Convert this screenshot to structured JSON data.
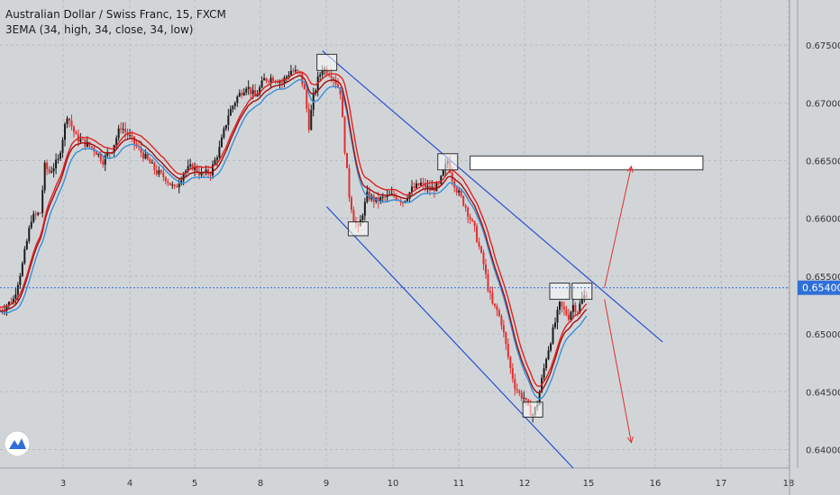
{
  "header": {
    "symbol_line": "Australian Dollar / Swiss Franc, 15, FXCM",
    "indicator_line": "3EMA (34, high, 34, close, 34, low)"
  },
  "colors": {
    "background": "#d2d5d8",
    "candle_up": "#1a1a1a",
    "candle_down": "#e03030",
    "ema_high": "#e02020",
    "ema_close": "#a01010",
    "ema_low": "#3a8fd8",
    "channel": "#2a4fd0",
    "arrow": "#e03030",
    "price_badge": "#2f6fd8",
    "grid": "#b8bcc0"
  },
  "price_badge": "0.65400",
  "chart_data": {
    "type": "candlestick",
    "title": "Australian Dollar / Swiss Franc, 15, FXCM",
    "indicator": "3EMA (34, high, 34, close, 34, low)",
    "y_ticks": [
      "0.67500",
      "0.67000",
      "0.66500",
      "0.66000",
      "0.65500",
      "0.65000",
      "0.64500",
      "0.64000"
    ],
    "x_ticks": [
      "3",
      "4",
      "5",
      "8",
      "9",
      "10",
      "11",
      "12",
      "15",
      "16",
      "17",
      "18"
    ],
    "ylim": [
      0.6384,
      0.6789
    ],
    "current_price": 0.654,
    "price_path": [
      [
        0,
        0.652
      ],
      [
        3,
        0.653
      ],
      [
        5,
        0.656
      ],
      [
        7,
        0.66
      ],
      [
        9,
        0.6605
      ],
      [
        10,
        0.6645
      ],
      [
        11,
        0.664
      ],
      [
        13,
        0.665
      ],
      [
        15,
        0.669
      ],
      [
        17,
        0.667
      ],
      [
        19,
        0.6665
      ],
      [
        21,
        0.666
      ],
      [
        23,
        0.665
      ],
      [
        25,
        0.666
      ],
      [
        27,
        0.668
      ],
      [
        29,
        0.667
      ],
      [
        31,
        0.666
      ],
      [
        33,
        0.665
      ],
      [
        35,
        0.664
      ],
      [
        37,
        0.6635
      ],
      [
        39,
        0.6625
      ],
      [
        41,
        0.664
      ],
      [
        43,
        0.6645
      ],
      [
        45,
        0.6638
      ],
      [
        47,
        0.664
      ],
      [
        49,
        0.666
      ],
      [
        51,
        0.669
      ],
      [
        53,
        0.6705
      ],
      [
        55,
        0.6715
      ],
      [
        57,
        0.6705
      ],
      [
        59,
        0.672
      ],
      [
        61,
        0.6722
      ],
      [
        63,
        0.6718
      ],
      [
        65,
        0.6728
      ],
      [
        67,
        0.6725
      ],
      [
        68,
        0.671
      ],
      [
        69,
        0.668
      ],
      [
        70,
        0.6705
      ],
      [
        71,
        0.672
      ],
      [
        72,
        0.673
      ],
      [
        73,
        0.6728
      ],
      [
        74,
        0.6725
      ],
      [
        75,
        0.6718
      ],
      [
        76,
        0.671
      ],
      [
        77,
        0.666
      ],
      [
        78,
        0.662
      ],
      [
        79,
        0.66
      ],
      [
        80,
        0.659
      ],
      [
        81,
        0.6605
      ],
      [
        82,
        0.662
      ],
      [
        84,
        0.6615
      ],
      [
        86,
        0.6618
      ],
      [
        88,
        0.662
      ],
      [
        90,
        0.6615
      ],
      [
        92,
        0.6625
      ],
      [
        94,
        0.663
      ],
      [
        96,
        0.6625
      ],
      [
        98,
        0.6628
      ],
      [
        99,
        0.664
      ],
      [
        100,
        0.665
      ],
      [
        101,
        0.6635
      ],
      [
        102,
        0.6625
      ],
      [
        104,
        0.661
      ],
      [
        106,
        0.659
      ],
      [
        107,
        0.6575
      ],
      [
        108,
        0.656
      ],
      [
        109,
        0.654
      ],
      [
        110,
        0.6525
      ],
      [
        111,
        0.652
      ],
      [
        112,
        0.651
      ],
      [
        113,
        0.649
      ],
      [
        114,
        0.647
      ],
      [
        115,
        0.6455
      ],
      [
        116,
        0.6448
      ],
      [
        117,
        0.6445
      ],
      [
        118,
        0.6435
      ],
      [
        119,
        0.643
      ],
      [
        120,
        0.644
      ],
      [
        121,
        0.646
      ],
      [
        122,
        0.648
      ],
      [
        123,
        0.6495
      ],
      [
        124,
        0.651
      ],
      [
        125,
        0.6525
      ],
      [
        126,
        0.652
      ],
      [
        127,
        0.6515
      ],
      [
        128,
        0.6525
      ],
      [
        129,
        0.652
      ],
      [
        130,
        0.653
      ],
      [
        131,
        0.6535
      ]
    ],
    "channel_upper": [
      [
        72,
        0.6745
      ],
      [
        148,
        0.6493
      ]
    ],
    "channel_lower": [
      [
        73,
        0.661
      ],
      [
        128,
        0.6384
      ]
    ],
    "markers": [
      {
        "t": 73,
        "low": 0.6728,
        "high": 0.6742
      },
      {
        "t": 80,
        "low": 0.6585,
        "high": 0.6597
      },
      {
        "t": 100,
        "low": 0.6642,
        "high": 0.6656
      },
      {
        "t": 119,
        "low": 0.6428,
        "high": 0.6441
      },
      {
        "t": 125,
        "low": 0.653,
        "high": 0.6544
      },
      {
        "t": 130,
        "low": 0.653,
        "high": 0.6544
      }
    ],
    "target_box": {
      "t_start": 105,
      "t_end": 157,
      "low": 0.6642,
      "high": 0.6654
    },
    "arrows": [
      {
        "from": [
          135,
          0.654
        ],
        "to": [
          141,
          0.6645
        ]
      },
      {
        "from": [
          135,
          0.653
        ],
        "to": [
          141,
          0.6406
        ]
      }
    ]
  }
}
